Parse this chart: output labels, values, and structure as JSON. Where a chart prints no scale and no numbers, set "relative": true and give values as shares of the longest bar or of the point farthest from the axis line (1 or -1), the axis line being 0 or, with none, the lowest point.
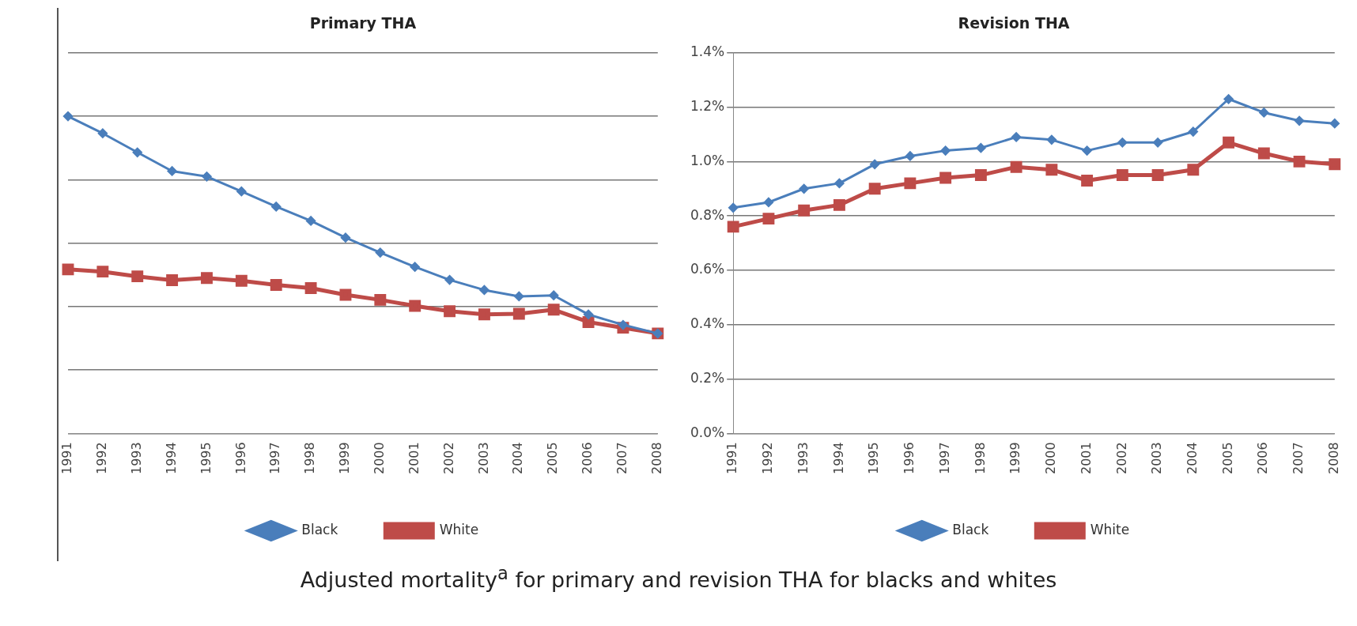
{
  "chart_data": [
    {
      "type": "line",
      "title": "Primary THA",
      "relative": true,
      "tick_labels": "x",
      "grid": "y",
      "legend": "bottom",
      "categories": [
        "1991",
        "1992",
        "1993",
        "1994",
        "1995",
        "1996",
        "1997",
        "1998",
        "1999",
        "2000",
        "2001",
        "2002",
        "2003",
        "2004",
        "2005",
        "2006",
        "2007",
        "2008"
      ],
      "series": [
        {
          "name": "Black",
          "color": "#4a7ebb",
          "marker": "diamond",
          "values": [
            1,
            0.946,
            0.886,
            0.827,
            0.81,
            0.763,
            0.715,
            0.67,
            0.617,
            0.57,
            0.525,
            0.484,
            0.452,
            0.432,
            0.435,
            0.375,
            0.342,
            0.315
          ]
        },
        {
          "name": "White",
          "color": "#be4b48",
          "marker": "square",
          "values": [
            0.517,
            0.51,
            0.495,
            0.483,
            0.49,
            0.481,
            0.468,
            0.458,
            0.437,
            0.421,
            0.402,
            0.385,
            0.375,
            0.377,
            0.39,
            0.351,
            0.333,
            0.315
          ]
        }
      ],
      "annotations": [
        "Adjusted mortality$^{a}$ for primary and revision THA for blacks and whites"
      ]
    },
    {
      "type": "line",
      "title": "Revision THA",
      "grid": "y",
      "legend": "bottom",
      "categories": [
        "1991",
        "1992",
        "1993",
        "1994",
        "1995",
        "1996",
        "1997",
        "1998",
        "1999",
        "2000",
        "2001",
        "2002",
        "2003",
        "2004",
        "2005",
        "2006",
        "2007",
        "2008"
      ],
      "ylim": [
        0,
        1.4
      ],
      "yticks": [
        {
          "value": 0,
          "label": "0.0%"
        },
        {
          "value": 0.2,
          "label": "0.2%"
        },
        {
          "value": 0.4,
          "label": "0.4%"
        },
        {
          "value": 0.6,
          "label": "0.6%"
        },
        {
          "value": 0.8,
          "label": "0.8%"
        },
        {
          "value": 1.0,
          "label": "1.0%"
        },
        {
          "value": 1.2,
          "label": "1.2%"
        },
        {
          "value": 1.4,
          "label": "1.4%"
        }
      ],
      "series": [
        {
          "name": "Black",
          "color": "#4a7ebb",
          "marker": "diamond",
          "values": [
            0.83,
            0.85,
            0.9,
            0.92,
            0.99,
            1.02,
            1.04,
            1.05,
            1.09,
            1.08,
            1.04,
            1.07,
            1.07,
            1.11,
            1.23,
            1.18,
            1.15,
            1.14
          ]
        },
        {
          "name": "White",
          "color": "#be4b48",
          "marker": "square",
          "values": [
            0.76,
            0.79,
            0.82,
            0.84,
            0.9,
            0.92,
            0.94,
            0.95,
            0.98,
            0.97,
            0.93,
            0.95,
            0.95,
            0.97,
            1.07,
            1.03,
            1.0,
            0.99
          ]
        }
      ]
    }
  ]
}
